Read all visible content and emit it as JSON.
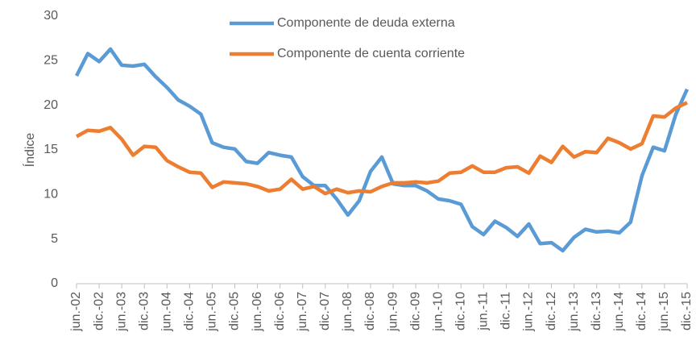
{
  "chart_data": {
    "type": "line",
    "ylabel": "Índice",
    "categories": [
      "jun.-02",
      null,
      "dic.-02",
      null,
      "jun.-03",
      null,
      "dic.-03",
      null,
      "jun.-04",
      null,
      "dic.-04",
      null,
      "jun.-05",
      null,
      "dic.-05",
      null,
      "jun.-06",
      null,
      "dic.-06",
      null,
      "jun.-07",
      null,
      "dic.-07",
      null,
      "jun.-08",
      null,
      "dic.-08",
      null,
      "jun.-09",
      null,
      "dic.-09",
      null,
      "jun.-10",
      null,
      "dic.-10",
      null,
      "jun.-11",
      null,
      "dic.-11",
      null,
      "jun.-12",
      null,
      "dic.-12",
      null,
      "jun.-13",
      null,
      "dic.-13",
      null,
      "jun.-14",
      null,
      "dic.-14",
      null,
      "jun.-15",
      null,
      "dic.-15"
    ],
    "series": [
      {
        "name": "Componente de deuda externa",
        "color": "#5b9bd5",
        "values": [
          23.3,
          25.8,
          24.9,
          26.3,
          24.5,
          24.4,
          24.6,
          23.2,
          22.0,
          20.6,
          19.9,
          19.0,
          15.8,
          15.3,
          15.1,
          13.7,
          13.5,
          14.7,
          14.4,
          14.2,
          12.0,
          11.0,
          11.0,
          9.5,
          7.7,
          9.3,
          12.6,
          14.2,
          11.2,
          11.0,
          11.0,
          10.4,
          9.5,
          9.3,
          8.9,
          6.4,
          5.5,
          7.0,
          6.3,
          5.3,
          6.7,
          4.5,
          4.6,
          3.7,
          5.2,
          6.1,
          5.8,
          5.9,
          5.7,
          6.9,
          12.1,
          15.3,
          14.9,
          19.0,
          21.8
        ]
      },
      {
        "name": "Componente de cuenta corriente",
        "color": "#ed7d31",
        "values": [
          16.5,
          17.2,
          17.1,
          17.5,
          16.2,
          14.4,
          15.4,
          15.3,
          13.8,
          13.1,
          12.5,
          12.4,
          10.8,
          11.4,
          11.3,
          11.2,
          10.9,
          10.4,
          10.6,
          11.7,
          10.6,
          10.9,
          10.1,
          10.6,
          10.2,
          10.4,
          10.3,
          10.9,
          11.3,
          11.3,
          11.4,
          11.3,
          11.5,
          12.4,
          12.5,
          13.2,
          12.5,
          12.5,
          13.0,
          13.1,
          12.4,
          14.3,
          13.6,
          15.4,
          14.2,
          14.8,
          14.7,
          16.3,
          15.8,
          15.1,
          15.7,
          18.8,
          18.7,
          19.7,
          20.3
        ]
      }
    ],
    "ylim": [
      0,
      30
    ],
    "yticks": [
      0,
      5,
      10,
      15,
      20,
      25,
      30
    ],
    "grid": false,
    "legend": "top"
  }
}
